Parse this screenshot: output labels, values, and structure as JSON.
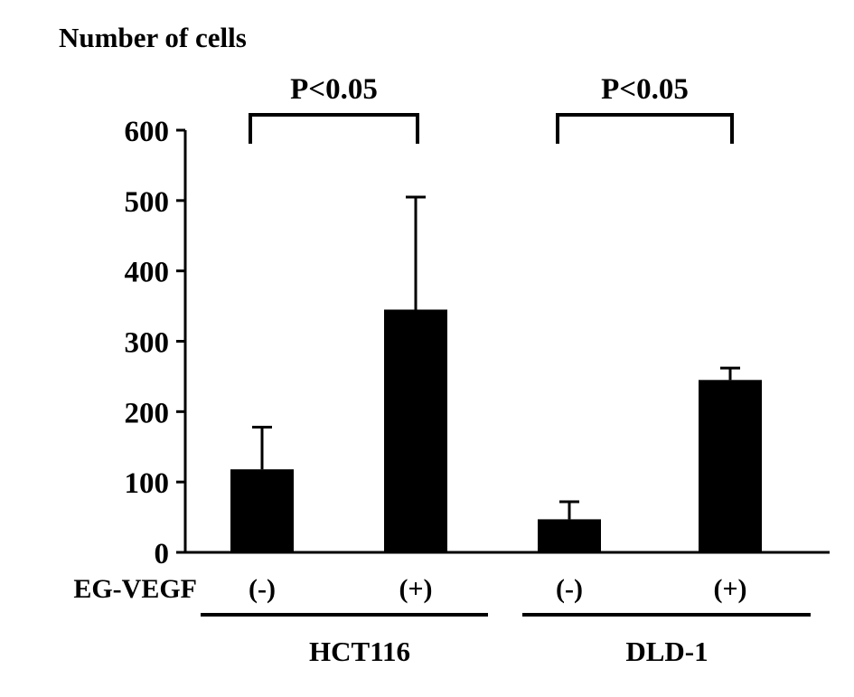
{
  "chart_data": {
    "type": "bar",
    "ylabel": "Number of cells",
    "ylim": [
      0,
      600
    ],
    "yticks": [
      0,
      100,
      200,
      300,
      400,
      500,
      600
    ],
    "row_label": "EG-VEGF",
    "bars": [
      {
        "group": "HCT116",
        "condition": "(-)",
        "value": 118,
        "error": 60
      },
      {
        "group": "HCT116",
        "condition": "(+)",
        "value": 345,
        "error": 160
      },
      {
        "group": "DLD-1",
        "condition": "(-)",
        "value": 47,
        "error": 25
      },
      {
        "group": "DLD-1",
        "condition": "(+)",
        "value": 245,
        "error": 17
      }
    ],
    "groups": [
      "HCT116",
      "DLD-1"
    ],
    "significance": [
      {
        "label": "P<0.05",
        "from": 0,
        "to": 1
      },
      {
        "label": "P<0.05",
        "from": 2,
        "to": 3
      }
    ],
    "bar_color": "#000000",
    "grid": false
  }
}
